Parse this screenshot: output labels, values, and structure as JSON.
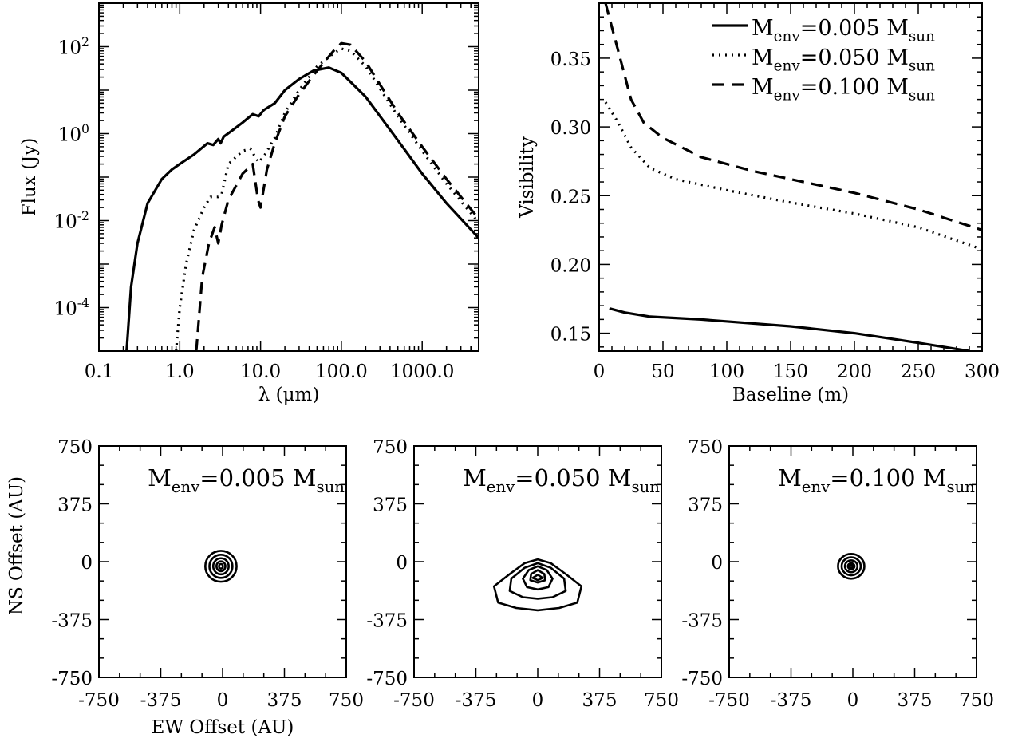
{
  "chart_data": [
    {
      "type": "line",
      "xlabel": "λ (μm)",
      "ylabel": "Flux (Jy)",
      "xscale": "log",
      "yscale": "log",
      "xlim": [
        0.1,
        5000
      ],
      "ylim": [
        1e-05,
        1000
      ],
      "xticks": [
        {
          "value": 0.1,
          "label": "0.1"
        },
        {
          "value": 1,
          "label": "1.0"
        },
        {
          "value": 10,
          "label": "10.0"
        },
        {
          "value": 100,
          "label": "100.0"
        },
        {
          "value": 1000,
          "label": "1000.0"
        }
      ],
      "yticks": [
        {
          "value": 100,
          "base": "10",
          "exp": "2"
        },
        {
          "value": 1,
          "base": "10",
          "exp": "0"
        },
        {
          "value": 0.01,
          "base": "10",
          "exp": "-2"
        },
        {
          "value": 0.0001,
          "base": "10",
          "exp": "-4"
        }
      ],
      "series": [
        {
          "style": "solid",
          "points": [
            [
              0.22,
              1e-05
            ],
            [
              0.25,
              0.0003
            ],
            [
              0.3,
              0.003
            ],
            [
              0.4,
              0.025
            ],
            [
              0.6,
              0.09
            ],
            [
              0.8,
              0.15
            ],
            [
              1.0,
              0.2
            ],
            [
              1.5,
              0.33
            ],
            [
              2.2,
              0.6
            ],
            [
              2.6,
              0.55
            ],
            [
              3.0,
              0.75
            ],
            [
              3.2,
              0.6
            ],
            [
              3.5,
              0.85
            ],
            [
              4.5,
              1.2
            ],
            [
              6,
              1.8
            ],
            [
              8,
              2.8
            ],
            [
              9.5,
              2.5
            ],
            [
              11,
              3.5
            ],
            [
              15,
              5
            ],
            [
              20,
              10
            ],
            [
              30,
              18
            ],
            [
              45,
              28
            ],
            [
              70,
              33
            ],
            [
              100,
              25
            ],
            [
              200,
              7
            ],
            [
              500,
              0.7
            ],
            [
              1000,
              0.12
            ],
            [
              2000,
              0.025
            ],
            [
              5000,
              0.004
            ]
          ]
        },
        {
          "style": "dotted",
          "points": [
            [
              0.9,
              1e-05
            ],
            [
              1.0,
              0.0001
            ],
            [
              1.2,
              0.001
            ],
            [
              1.5,
              0.006
            ],
            [
              2.0,
              0.02
            ],
            [
              2.4,
              0.035
            ],
            [
              3.0,
              0.035
            ],
            [
              3.3,
              0.04
            ],
            [
              4.0,
              0.2
            ],
            [
              6.0,
              0.4
            ],
            [
              7.5,
              0.45
            ],
            [
              8.5,
              0.3
            ],
            [
              9.5,
              0.22
            ],
            [
              11,
              0.3
            ],
            [
              15,
              0.8
            ],
            [
              20,
              3
            ],
            [
              30,
              10
            ],
            [
              50,
              35
            ],
            [
              80,
              70
            ],
            [
              100,
              90
            ],
            [
              130,
              80
            ],
            [
              200,
              35
            ],
            [
              500,
              2.5
            ],
            [
              1000,
              0.4
            ],
            [
              2000,
              0.07
            ],
            [
              5000,
              0.009
            ]
          ]
        },
        {
          "style": "dashed",
          "points": [
            [
              1.6,
              1e-05
            ],
            [
              1.9,
              0.0005
            ],
            [
              2.3,
              0.003
            ],
            [
              2.7,
              0.007
            ],
            [
              3.0,
              0.003
            ],
            [
              3.3,
              0.008
            ],
            [
              4,
              0.03
            ],
            [
              6,
              0.12
            ],
            [
              8,
              0.2
            ],
            [
              9.3,
              0.03
            ],
            [
              10,
              0.02
            ],
            [
              12,
              0.15
            ],
            [
              15,
              0.6
            ],
            [
              20,
              2.5
            ],
            [
              30,
              8
            ],
            [
              50,
              28
            ],
            [
              80,
              80
            ],
            [
              100,
              120
            ],
            [
              130,
              110
            ],
            [
              200,
              45
            ],
            [
              500,
              3
            ],
            [
              1000,
              0.5
            ],
            [
              2000,
              0.09
            ],
            [
              5000,
              0.011
            ]
          ]
        }
      ]
    },
    {
      "type": "line",
      "xlabel": "Baseline (m)",
      "ylabel": "Visibility",
      "xlim": [
        0,
        300
      ],
      "ylim": [
        0.137,
        0.39
      ],
      "xticks": [
        0,
        50,
        100,
        150,
        200,
        250,
        300
      ],
      "yticks": [
        "0.15",
        "0.20",
        "0.25",
        "0.30",
        "0.35"
      ],
      "legend": {
        "position": "top-right",
        "entries": [
          {
            "style": "solid",
            "prefix": "M",
            "sub1": "env",
            "mid": "=0.005 M",
            "sub2": "sun"
          },
          {
            "style": "dotted",
            "prefix": "M",
            "sub1": "env",
            "mid": "=0.050 M",
            "sub2": "sun"
          },
          {
            "style": "dashed",
            "prefix": "M",
            "sub1": "env",
            "mid": "=0.100 M",
            "sub2": "sun"
          }
        ]
      },
      "series": [
        {
          "style": "solid",
          "points": [
            [
              8,
              0.168
            ],
            [
              20,
              0.165
            ],
            [
              40,
              0.162
            ],
            [
              80,
              0.16
            ],
            [
              150,
              0.155
            ],
            [
              200,
              0.15
            ],
            [
              250,
              0.143
            ],
            [
              290,
              0.137
            ]
          ]
        },
        {
          "style": "dotted",
          "points": [
            [
              5,
              0.318
            ],
            [
              15,
              0.303
            ],
            [
              25,
              0.285
            ],
            [
              40,
              0.27
            ],
            [
              60,
              0.262
            ],
            [
              100,
              0.254
            ],
            [
              150,
              0.245
            ],
            [
              200,
              0.237
            ],
            [
              250,
              0.227
            ],
            [
              300,
              0.211
            ]
          ]
        },
        {
          "style": "dashed",
          "points": [
            [
              5,
              0.39
            ],
            [
              15,
              0.355
            ],
            [
              25,
              0.32
            ],
            [
              35,
              0.303
            ],
            [
              50,
              0.292
            ],
            [
              80,
              0.278
            ],
            [
              120,
              0.268
            ],
            [
              200,
              0.252
            ],
            [
              250,
              0.24
            ],
            [
              300,
              0.225
            ]
          ]
        }
      ]
    },
    {
      "type": "contour",
      "xlabel": "EW Offset (AU)",
      "ylabel": "NS Offset (AU)",
      "xlim": [
        -750,
        750
      ],
      "ylim": [
        -750,
        750
      ],
      "ticks": [
        "-750",
        "-375",
        "0",
        "375",
        "750"
      ],
      "panels": [
        {
          "title": {
            "prefix": "M",
            "sub1": "env",
            "mid": "=0.005 M",
            "sub2": "sun"
          },
          "contours": [
            {
              "cx": -10,
              "cy": -30,
              "rx": 95,
              "ry": 100
            },
            {
              "cx": -10,
              "cy": -30,
              "rx": 70,
              "ry": 75
            },
            {
              "cx": -10,
              "cy": -30,
              "rx": 47,
              "ry": 52
            },
            {
              "cx": -10,
              "cy": -30,
              "rx": 27,
              "ry": 32
            },
            {
              "cx": -10,
              "cy": -30,
              "rx": 12,
              "ry": 15
            }
          ]
        },
        {
          "title": {
            "prefix": "M",
            "sub1": "env",
            "mid": "=0.050 M",
            "sub2": "sun"
          },
          "contours": [
            {
              "points": [
                [
                  0,
                  15
                ],
                [
                  -80,
                  -10
                ],
                [
                  -170,
                  -80
                ],
                [
                  -265,
                  -160
                ],
                [
                  -240,
                  -265
                ],
                [
                  -130,
                  -300
                ],
                [
                  0,
                  -315
                ],
                [
                  130,
                  -300
                ],
                [
                  240,
                  -265
                ],
                [
                  265,
                  -160
                ],
                [
                  170,
                  -80
                ],
                [
                  80,
                  -10
                ]
              ]
            },
            {
              "points": [
                [
                  0,
                  -10
                ],
                [
                  -80,
                  -40
                ],
                [
                  -160,
                  -110
                ],
                [
                  -170,
                  -190
                ],
                [
                  -90,
                  -230
                ],
                [
                  0,
                  -240
                ],
                [
                  90,
                  -230
                ],
                [
                  170,
                  -190
                ],
                [
                  160,
                  -110
                ],
                [
                  80,
                  -40
                ]
              ]
            },
            {
              "points": [
                [
                  0,
                  -30
                ],
                [
                  -55,
                  -55
                ],
                [
                  -90,
                  -110
                ],
                [
                  -65,
                  -165
                ],
                [
                  0,
                  -180
                ],
                [
                  65,
                  -165
                ],
                [
                  90,
                  -110
                ],
                [
                  55,
                  -55
                ]
              ]
            },
            {
              "points": [
                [
                  0,
                  -55
                ],
                [
                  -40,
                  -80
                ],
                [
                  -45,
                  -120
                ],
                [
                  0,
                  -135
                ],
                [
                  45,
                  -120
                ],
                [
                  40,
                  -80
                ]
              ]
            },
            {
              "points": [
                [
                  0,
                  -85
                ],
                [
                  -30,
                  -105
                ],
                [
                  0,
                  -120
                ],
                [
                  30,
                  -105
                ]
              ]
            }
          ]
        },
        {
          "title": {
            "prefix": "M",
            "sub1": "env",
            "mid": "=0.100 M",
            "sub2": "sun"
          },
          "contours": [
            {
              "cx": -10,
              "cy": -30,
              "rx": 80,
              "ry": 80
            },
            {
              "cx": -10,
              "cy": -30,
              "rx": 58,
              "ry": 58
            },
            {
              "cx": -10,
              "cy": -30,
              "rx": 38,
              "ry": 38
            },
            {
              "cx": -10,
              "cy": -30,
              "rx": 20,
              "ry": 20
            },
            {
              "cx": -10,
              "cy": -30,
              "rx": 9,
              "ry": 9
            }
          ]
        }
      ]
    }
  ]
}
